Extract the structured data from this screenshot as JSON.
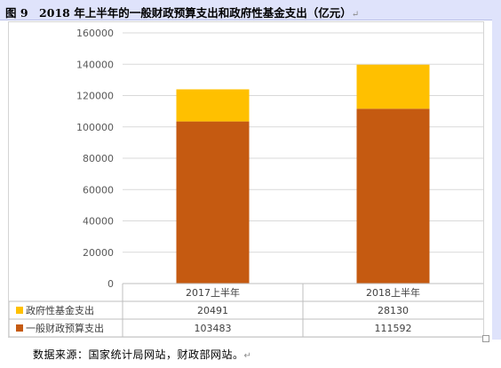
{
  "title": "图 9　2018 年上半年的一般财政预算支出和政府性基金支出（亿元）",
  "source": "数据来源：国家统计局网站，财政部网站。",
  "paragraph_mark": "↵",
  "chart_data": {
    "type": "bar",
    "stacked": true,
    "categories": [
      "2017上半年",
      "2018上半年"
    ],
    "series": [
      {
        "name": "一般财政预算支出",
        "values": [
          103483,
          111592
        ],
        "color": "#c55a11"
      },
      {
        "name": "政府性基金支出",
        "values": [
          20491,
          28130
        ],
        "color": "#ffc000"
      }
    ],
    "ylim": [
      0,
      160000
    ],
    "yticks": [
      "0",
      "20000",
      "40000",
      "60000",
      "80000",
      "100000",
      "120000",
      "140000",
      "160000"
    ],
    "grid": true,
    "data_table": true
  }
}
